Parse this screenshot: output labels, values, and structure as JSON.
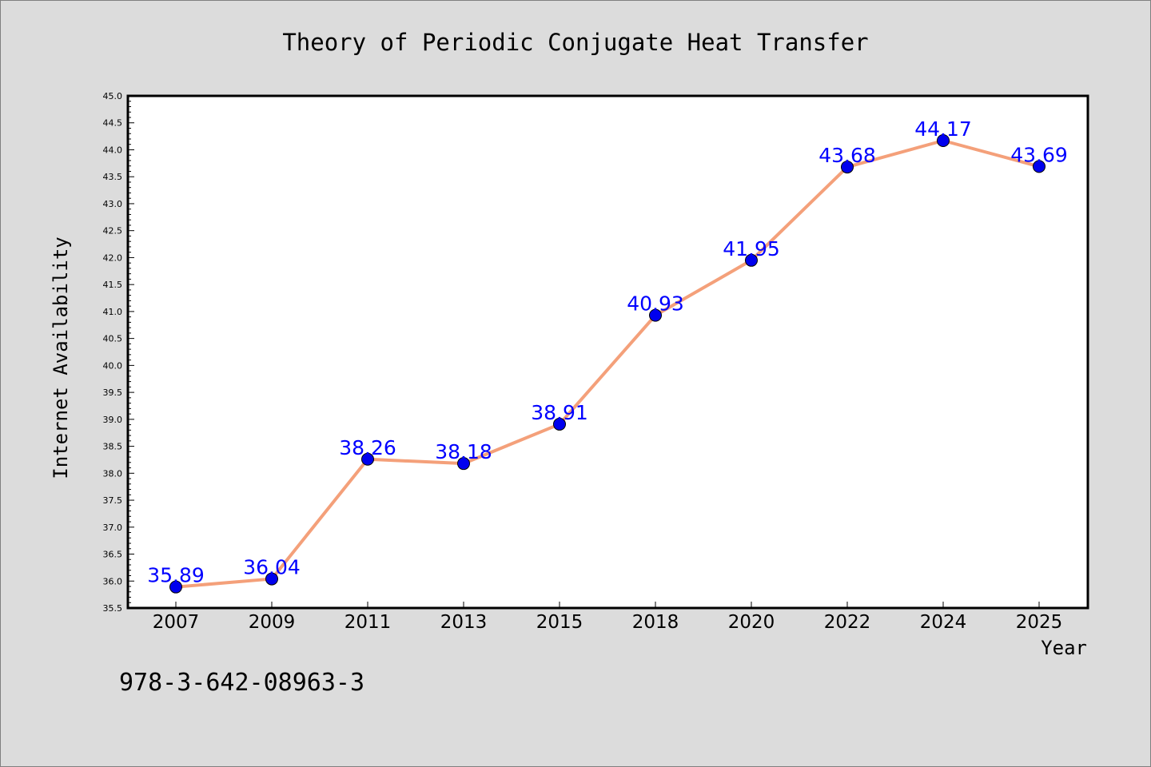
{
  "footer": {
    "isbn": "978-3-642-08963-3"
  },
  "chart_data": {
    "type": "line",
    "title": "Theory of Periodic Conjugate Heat Transfer",
    "xlabel": "Year",
    "ylabel": "Internet Availability",
    "categories": [
      "2007",
      "2009",
      "2011",
      "2013",
      "2015",
      "2018",
      "2020",
      "2022",
      "2024",
      "2025"
    ],
    "series": [
      {
        "values": [
          35.89,
          36.04,
          38.26,
          38.18,
          38.91,
          40.93,
          41.95,
          43.68,
          44.17,
          43.69
        ],
        "line_color": "#f4a07a",
        "marker_color": "#0000ee"
      }
    ],
    "data_labels": [
      "35.89",
      "36.04",
      "38.26",
      "38.18",
      "38.91",
      "40.93",
      "41.95",
      "43.68",
      "44.17",
      "43.69"
    ],
    "ylim": [
      35.5,
      45.0
    ],
    "y_ticks": [
      "35.5",
      "36.0",
      "36.5",
      "37.0",
      "37.5",
      "38.0",
      "38.5",
      "39.0",
      "39.5",
      "40.0",
      "40.5",
      "41.0",
      "41.5",
      "42.0",
      "42.5",
      "43.0",
      "43.5",
      "44.0",
      "44.5",
      "45.0"
    ],
    "grid": false,
    "data_label_color": "#0000ff",
    "plot_background": "#ffffff",
    "page_background": "#dcdcdc"
  }
}
